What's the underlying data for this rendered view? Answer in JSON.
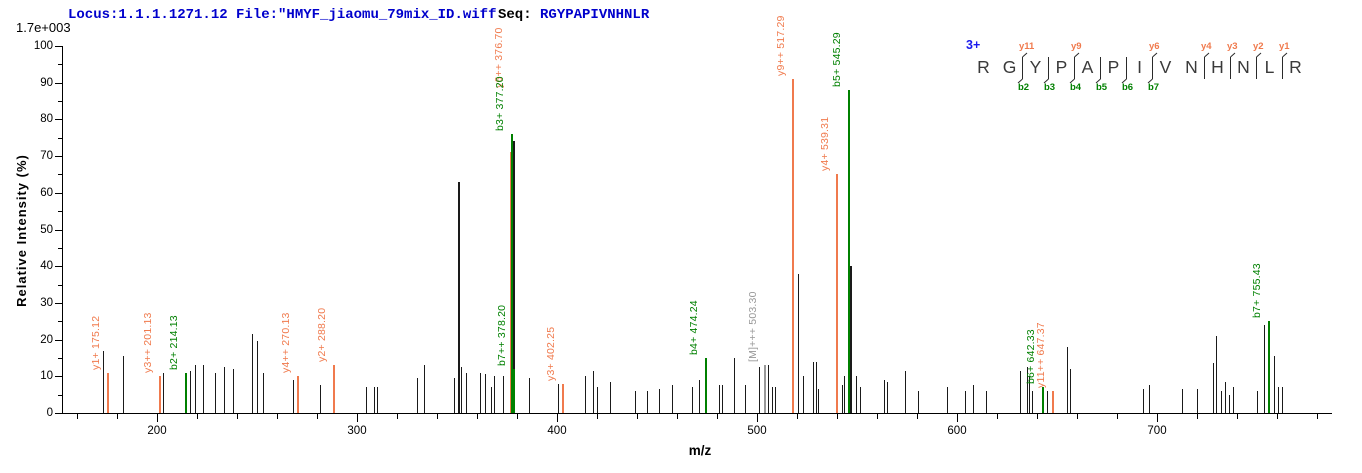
{
  "header": {
    "locus_file": "Locus:1.1.1.1271.12 File:\"HMYF_jiaomu_79mix_ID.wiff\"",
    "seq_label": "Seq:",
    "seq_value": "RGYPAPIVNHNLR",
    "base_peak_intensity": "1.7e+003"
  },
  "peptide_panel": {
    "charge_state": "3+",
    "residues": [
      "R",
      "G",
      "Y",
      "P",
      "A",
      "P",
      "I",
      "V",
      "N",
      "H",
      "N",
      "L",
      "R"
    ],
    "cleavages": [
      {
        "gap": 2,
        "y": "y11",
        "b": "b2"
      },
      {
        "gap": 3,
        "b": "b3"
      },
      {
        "gap": 4,
        "y": "y9",
        "b": "b4"
      },
      {
        "gap": 5,
        "b": "b5"
      },
      {
        "gap": 6,
        "b": "b6"
      },
      {
        "gap": 7,
        "y": "y6",
        "b": "b7"
      },
      {
        "gap": 9,
        "y": "y4"
      },
      {
        "gap": 10,
        "y": "y3"
      },
      {
        "gap": 11,
        "y": "y2"
      },
      {
        "gap": 12,
        "y": "y1"
      }
    ]
  },
  "chart_data": {
    "type": "bar",
    "subtype": "ms2-centroid-mass-spectrum",
    "title": "",
    "xlabel": "m/z",
    "ylabel": "Relative  Intensity (%)",
    "xlim": [
      153,
      787
    ],
    "ylim": [
      0,
      100
    ],
    "x_major_ticks": [
      200,
      300,
      400,
      500,
      600,
      700
    ],
    "x_minor_tick_step": 20,
    "y_major_tick_step": 10,
    "y_minor_tick_step": 5,
    "grid": false,
    "legend": "none",
    "colors": {
      "y_ion": "#f07a4d",
      "b_ion": "#008000",
      "precursor": "#999999",
      "unassigned": "#1a1a1a",
      "header_blue": "#0000cc"
    },
    "series": [
      {
        "name": "y-ions",
        "color": "#f07a4d",
        "peaks": [
          {
            "label": "y1+ 175.12",
            "mz": 175.12,
            "intensity": 11
          },
          {
            "label": "y3++ 201.13",
            "mz": 201.13,
            "intensity": 10
          },
          {
            "label": "y4++ 270.13",
            "mz": 270.13,
            "intensity": 10
          },
          {
            "label": "y2+ 288.20",
            "mz": 288.2,
            "intensity": 13
          },
          {
            "label": "y6++ 376.70",
            "mz": 376.7,
            "intensity": 71,
            "label_y": 88
          },
          {
            "label": "y3+ 402.25",
            "mz": 402.25,
            "intensity": 8
          },
          {
            "label": "y9++ 517.29",
            "mz": 517.29,
            "intensity": 91
          },
          {
            "label": "y4+ 539.31",
            "mz": 539.31,
            "intensity": 65
          },
          {
            "label": "y11++ 647.37",
            "mz": 647.37,
            "intensity": 6
          }
        ]
      },
      {
        "name": "b-ions",
        "color": "#008000",
        "peaks": [
          {
            "label": "b2+ 214.13",
            "mz": 214.13,
            "intensity": 11
          },
          {
            "label": "b3+ 377.20",
            "mz": 377.2,
            "intensity": 76
          },
          {
            "label": "b7++ 378.20",
            "mz": 378.2,
            "intensity": 12
          },
          {
            "label": "b4+ 474.24",
            "mz": 474.24,
            "intensity": 15
          },
          {
            "label": "b5+ 545.29",
            "mz": 545.29,
            "intensity": 88
          },
          {
            "label": "b6+ 642.33",
            "mz": 642.33,
            "intensity": 7
          },
          {
            "label": "b7+ 755.43",
            "mz": 755.43,
            "intensity": 25
          }
        ]
      },
      {
        "name": "precursor",
        "color": "#999999",
        "peaks": [
          {
            "label": "[M]+++ 503.30",
            "mz": 503.3,
            "intensity": 13
          }
        ]
      },
      {
        "name": "unassigned",
        "color": "#1a1a1a",
        "peaks": [
          [
            173,
            17
          ],
          [
            183,
            15.5
          ],
          [
            203,
            11
          ],
          [
            216.5,
            11.5
          ],
          [
            219,
            13
          ],
          [
            223,
            13
          ],
          [
            229,
            11
          ],
          [
            233.5,
            12.5
          ],
          [
            238,
            12
          ],
          [
            247.5,
            21.5
          ],
          [
            250,
            19.5
          ],
          [
            253,
            11
          ],
          [
            268,
            9
          ],
          [
            281.5,
            7.5
          ],
          [
            304.5,
            7
          ],
          [
            308.5,
            7
          ],
          [
            310,
            7
          ],
          [
            330,
            9.5
          ],
          [
            333.5,
            13
          ],
          [
            348.5,
            9.5
          ],
          [
            350.5,
            63
          ],
          [
            352,
            12.5
          ],
          [
            354.5,
            11
          ],
          [
            361.5,
            11
          ],
          [
            364,
            10.5
          ],
          [
            367,
            7
          ],
          [
            368.5,
            10
          ],
          [
            373,
            10
          ],
          [
            377.9,
            74
          ],
          [
            386,
            9.5
          ],
          [
            400.5,
            8
          ],
          [
            414,
            10
          ],
          [
            418,
            11.5
          ],
          [
            420,
            7
          ],
          [
            426.5,
            8.5
          ],
          [
            439,
            6
          ],
          [
            445,
            6
          ],
          [
            451,
            6.5
          ],
          [
            457.5,
            7.5
          ],
          [
            467.5,
            7
          ],
          [
            471,
            9
          ],
          [
            481,
            7.5
          ],
          [
            482.5,
            7.5
          ],
          [
            488.5,
            15
          ],
          [
            494,
            7.5
          ],
          [
            501,
            12.5
          ],
          [
            505.5,
            13
          ],
          [
            507.5,
            7
          ],
          [
            509,
            7
          ],
          [
            520.5,
            38
          ],
          [
            523,
            10
          ],
          [
            528,
            14
          ],
          [
            529.5,
            14
          ],
          [
            530.5,
            6.5
          ],
          [
            542.5,
            7.5
          ],
          [
            543.5,
            10
          ],
          [
            546.5,
            40
          ],
          [
            549.5,
            10
          ],
          [
            551.5,
            7
          ],
          [
            563.5,
            9
          ],
          [
            565,
            8.5
          ],
          [
            574,
            11.5
          ],
          [
            580.5,
            6
          ],
          [
            595,
            7
          ],
          [
            604,
            6
          ],
          [
            608,
            7.5
          ],
          [
            614.5,
            6
          ],
          [
            631.5,
            11.5
          ],
          [
            635,
            12.5
          ],
          [
            636,
            10
          ],
          [
            637.5,
            6
          ],
          [
            645,
            6
          ],
          [
            655,
            18
          ],
          [
            656.5,
            12
          ],
          [
            693,
            6.5
          ],
          [
            696,
            7.5
          ],
          [
            712.5,
            6.5
          ],
          [
            720,
            6.5
          ],
          [
            728,
            13.5
          ],
          [
            729.5,
            21
          ],
          [
            732,
            6
          ],
          [
            734,
            8.5
          ],
          [
            736,
            5
          ],
          [
            738,
            7
          ],
          [
            750,
            6
          ],
          [
            753.5,
            24
          ],
          [
            758.5,
            15.5
          ],
          [
            760.5,
            7
          ],
          [
            762.5,
            7
          ]
        ]
      }
    ]
  }
}
